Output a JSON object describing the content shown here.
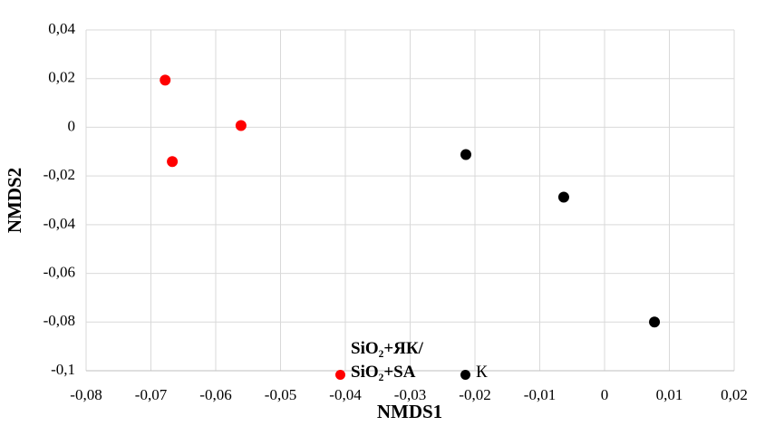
{
  "chart_data": {
    "type": "scatter",
    "x_label": "NMDS1",
    "y_label": "NMDS2",
    "xlim": [
      -0.08,
      0.02
    ],
    "xticks": [
      {
        "value": -0.08,
        "label": "-0,08"
      },
      {
        "value": -0.07,
        "label": "-0,07"
      },
      {
        "value": -0.06,
        "label": "-0,06"
      },
      {
        "value": -0.05,
        "label": "-0,05"
      },
      {
        "value": -0.04,
        "label": "-0,04"
      },
      {
        "value": -0.03,
        "label": "-0,03"
      },
      {
        "value": -0.02,
        "label": "-0,02"
      },
      {
        "value": -0.01,
        "label": "-0,01"
      },
      0,
      {
        "value": 0.01,
        "label": "0,01"
      },
      {
        "value": 0.02,
        "label": "0,02"
      }
    ],
    "ylim": [
      -0.1,
      0.04
    ],
    "yticks": [
      {
        "value": -0.1,
        "label": "-0,1"
      },
      {
        "value": -0.08,
        "label": "-0,08"
      },
      {
        "value": -0.06,
        "label": "-0,06"
      },
      {
        "value": -0.04,
        "label": "-0,04"
      },
      {
        "value": -0.02,
        "label": "-0,02"
      },
      0,
      {
        "value": 0.02,
        "label": "0,02"
      },
      {
        "value": 0.04,
        "label": "0,04"
      }
    ],
    "grid": true,
    "legend": "bottom",
    "series": [
      {
        "name": "SiO₂+ЯК/ SiO₂+SA",
        "color": "#ff0000",
        "x": [
          -0.0678,
          -0.0667,
          -0.0561
        ],
        "values": [
          0.0194,
          -0.0141,
          0.0007
        ]
      },
      {
        "name": "К",
        "color": "#000000",
        "x": [
          -0.0214,
          -0.0063,
          0.0077
        ],
        "values": [
          -0.0112,
          -0.0287,
          -0.08
        ]
      }
    ]
  }
}
